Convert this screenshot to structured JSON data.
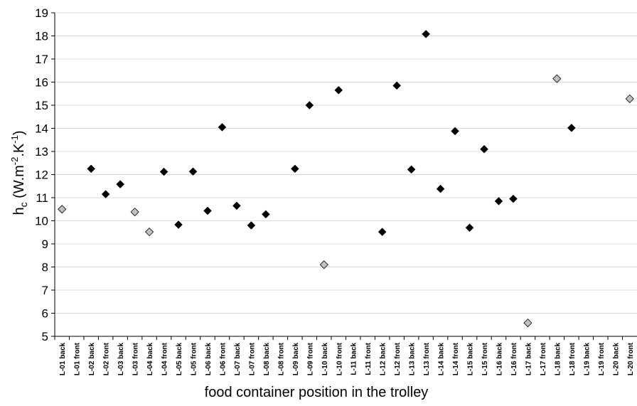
{
  "chart_data": {
    "type": "scatter",
    "xlabel": "food container position in the trolley",
    "ylabel_main": "h",
    "ylabel_sub": "c",
    "ylabel_unit_prefix": " (W.m",
    "ylabel_sup1": "-2",
    "ylabel_mid": ".K",
    "ylabel_sup2": "-1",
    "ylabel_close": ")",
    "ylim": [
      5,
      19
    ],
    "yticks": [
      5,
      6,
      7,
      8,
      9,
      10,
      11,
      12,
      13,
      14,
      15,
      16,
      17,
      18,
      19
    ],
    "grid": true,
    "categories": [
      "L-01 back",
      "L-01 front",
      "L-02 back",
      "L-02 front",
      "L-03 back",
      "L-03 front",
      "L-04 back",
      "L-04 front",
      "L-05 back",
      "L-05 front",
      "L-06 back",
      "L-06 front",
      "L-07 back",
      "L-07 front",
      "L-08 back",
      "L-08 front",
      "L-09 back",
      "L-09 front",
      "L-10 back",
      "L-10 front",
      "L-11 back",
      "L-11 front",
      "L-12 back",
      "L-12 front",
      "L-13 back",
      "L-13 front",
      "L-14 back",
      "L-14 front",
      "L-15 back",
      "L-15 front",
      "L-16 back",
      "L-16 front",
      "L-17 back",
      "L-17 front",
      "L-18 back",
      "L-18 front",
      "L-19 back",
      "L-19 front",
      "L-20 back",
      "L-20 front"
    ],
    "series": [
      {
        "marker_color": "#000000",
        "points": [
          {
            "x": "L-02 back",
            "y": 12.25
          },
          {
            "x": "L-02 front",
            "y": 11.15
          },
          {
            "x": "L-03 back",
            "y": 11.58
          },
          {
            "x": "L-04 front",
            "y": 12.12
          },
          {
            "x": "L-05 back",
            "y": 9.83
          },
          {
            "x": "L-05 front",
            "y": 12.13
          },
          {
            "x": "L-06 back",
            "y": 10.43
          },
          {
            "x": "L-06 front",
            "y": 14.05
          },
          {
            "x": "L-07 back",
            "y": 10.65
          },
          {
            "x": "L-07 front",
            "y": 9.8
          },
          {
            "x": "L-08 back",
            "y": 10.28
          },
          {
            "x": "L-09 back",
            "y": 12.25
          },
          {
            "x": "L-09 front",
            "y": 15.0
          },
          {
            "x": "L-10 front",
            "y": 15.65
          },
          {
            "x": "L-12 back",
            "y": 9.52
          },
          {
            "x": "L-12 front",
            "y": 15.85
          },
          {
            "x": "L-13 back",
            "y": 12.22
          },
          {
            "x": "L-13 front",
            "y": 18.08
          },
          {
            "x": "L-14 back",
            "y": 11.38
          },
          {
            "x": "L-14 front",
            "y": 13.88
          },
          {
            "x": "L-15 back",
            "y": 9.7
          },
          {
            "x": "L-15 front",
            "y": 13.1
          },
          {
            "x": "L-16 back",
            "y": 10.85
          },
          {
            "x": "L-16 front",
            "y": 10.95
          },
          {
            "x": "L-18 front",
            "y": 14.02
          }
        ]
      },
      {
        "marker_color": "#c0c0c0",
        "points": [
          {
            "x": "L-01 back",
            "y": 10.5
          },
          {
            "x": "L-03 front",
            "y": 10.38
          },
          {
            "x": "L-04 back",
            "y": 9.52
          },
          {
            "x": "L-10 back",
            "y": 8.1
          },
          {
            "x": "L-17 back",
            "y": 5.58
          },
          {
            "x": "L-18 back",
            "y": 16.15
          },
          {
            "x": "L-20 front",
            "y": 15.28
          }
        ]
      }
    ]
  }
}
